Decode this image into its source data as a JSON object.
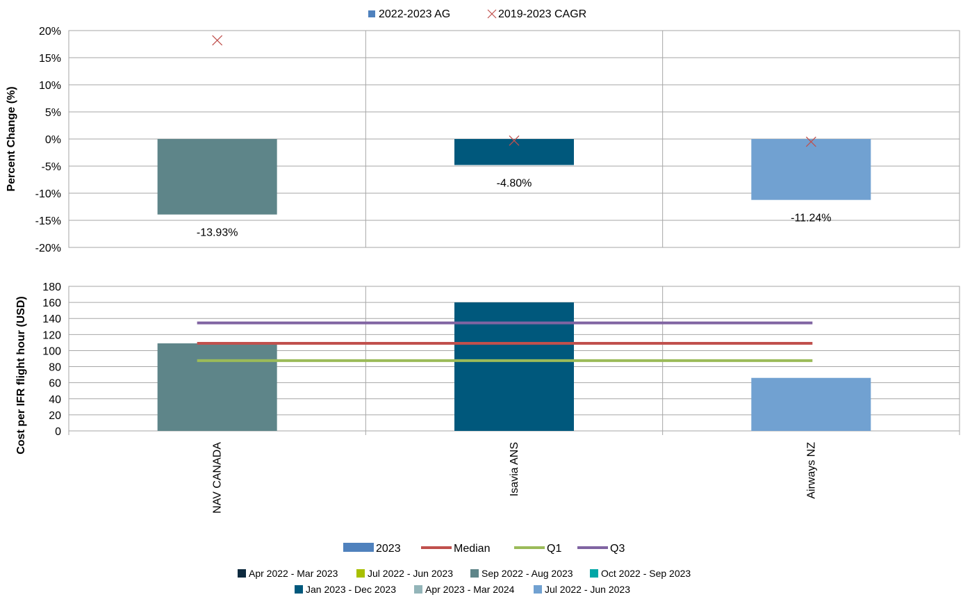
{
  "colors": {
    "nav_canada": "#5e8589",
    "isavia": "#00587c",
    "airways_nz": "#71a1d1",
    "legend_ag": "#4f81bd",
    "cagr_marker": "#c0504d",
    "median": "#c0504d",
    "q1": "#9bbb59",
    "q3": "#8064a2",
    "grid": "#a6a6a6"
  },
  "chart_data": [
    {
      "type": "bar",
      "ylabel": "Percent Change (%)",
      "ylim": [
        -20,
        20
      ],
      "yticks": [
        20,
        15,
        10,
        5,
        0,
        -5,
        -10,
        -15,
        -20
      ],
      "ytick_labels": [
        "20%",
        "15%",
        "10%",
        "5%",
        "0%",
        "-5%",
        "-10%",
        "-15%",
        "-20%"
      ],
      "categories": [
        "NAV CANADA",
        "Isavia ANS",
        "Airways NZ"
      ],
      "legend": [
        "2022-2023 AG",
        "2019-2023 CAGR"
      ],
      "series": [
        {
          "name": "2022-2023 AG",
          "values": [
            -13.93,
            -4.8,
            -11.24
          ]
        },
        {
          "name": "2019-2023 CAGR",
          "values": [
            18.2,
            -0.3,
            -0.5
          ]
        }
      ],
      "data_labels": [
        "-13.93%",
        "-4.80%",
        "-11.24%"
      ],
      "grid": true,
      "legend_position": "top"
    },
    {
      "type": "bar",
      "ylabel": "Cost per IFR flight hour (USD)",
      "ylim": [
        0,
        180
      ],
      "yticks": [
        180,
        160,
        140,
        120,
        100,
        80,
        60,
        40,
        20,
        0
      ],
      "categories": [
        "NAV CANADA",
        "Isavia ANS",
        "Airways NZ"
      ],
      "series": [
        {
          "name": "2023",
          "values": [
            109,
            160,
            66
          ]
        },
        {
          "name": "Median",
          "values": [
            109,
            109,
            109
          ]
        },
        {
          "name": "Q1",
          "values": [
            87.5,
            87.5,
            87.5
          ]
        },
        {
          "name": "Q3",
          "values": [
            134.5,
            134.5,
            134.5
          ]
        }
      ],
      "legend": [
        "2023",
        "Median",
        "Q1",
        "Q3"
      ],
      "grid": true,
      "legend_position": "bottom"
    }
  ],
  "period_legend": {
    "row1": [
      "Apr 2022 - Mar 2023",
      "Jul 2022 - Jun 2023",
      "Sep 2022 - Aug 2023",
      "Oct 2022 - Sep 2023"
    ],
    "row2": [
      "Jan 2023 - Dec 2023",
      "Apr 2023 - Mar 2024",
      "Jul 2022 - Jun 2023"
    ],
    "row1_colors": [
      "#0d2a3e",
      "#a8c000",
      "#5e8589",
      "#00a6a6"
    ],
    "row2_colors": [
      "#00587c",
      "#93b5b9",
      "#71a1d1"
    ]
  }
}
